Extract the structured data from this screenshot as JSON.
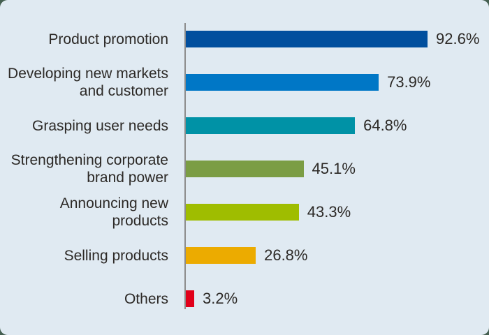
{
  "page": {
    "background_color": "#456051",
    "card_color": "#e0eaf2",
    "text_color": "#2c2926",
    "axis_line_color": "#8c8c8c"
  },
  "chart_data": {
    "type": "bar",
    "orientation": "horizontal",
    "title": "",
    "xlabel": "",
    "ylabel": "",
    "xlim": [
      0,
      100
    ],
    "grid": false,
    "legend": false,
    "unit": "%",
    "categories": [
      "Product promotion",
      "Developing new markets\nand customer",
      "Grasping user needs",
      "Strengthening corporate\nbrand power",
      "Announcing new products",
      "Selling products",
      "Others"
    ],
    "values": [
      92.6,
      73.9,
      64.8,
      45.1,
      43.3,
      26.8,
      3.2
    ],
    "value_labels": [
      "92.6%",
      "73.9%",
      "64.8%",
      "45.1%",
      "43.3%",
      "26.8%",
      "3.2%"
    ],
    "bar_colors": [
      "#014f9e",
      "#0077c6",
      "#0092a6",
      "#7b9d44",
      "#9fbd00",
      "#ecab00",
      "#e1001a"
    ]
  }
}
